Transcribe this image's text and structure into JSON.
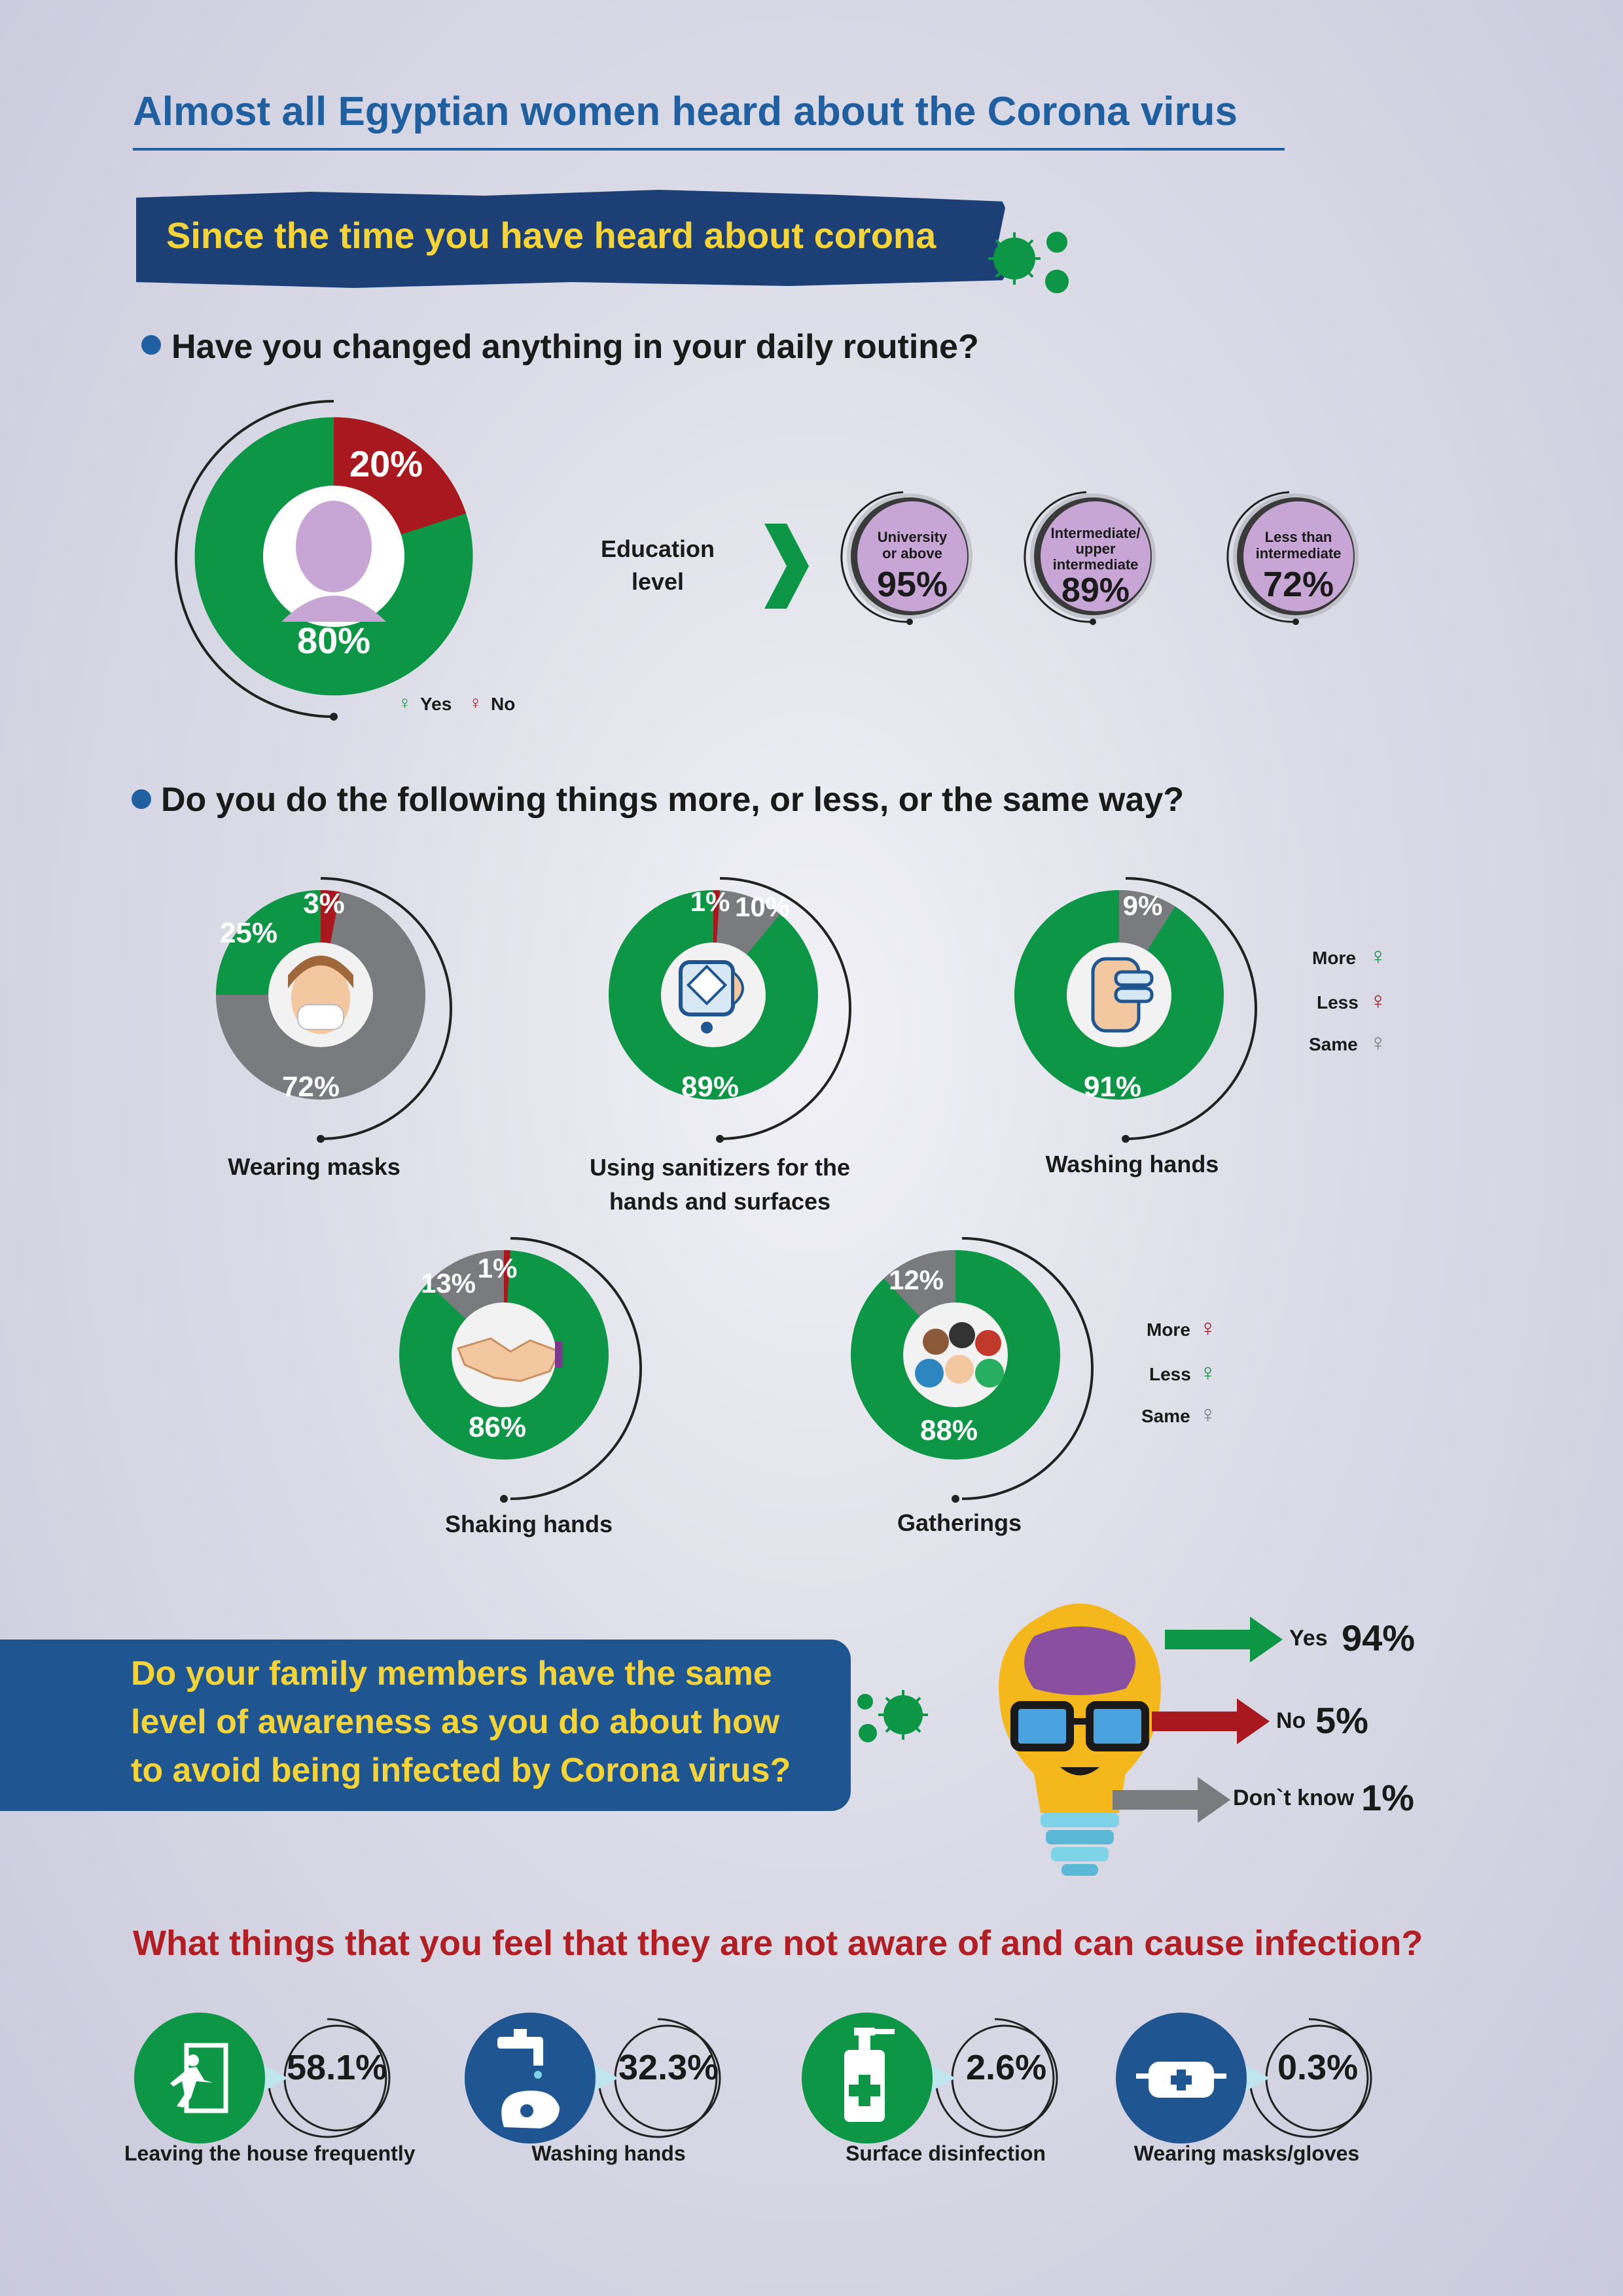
{
  "title": "Almost all Egyptian women heard about the Corona virus",
  "banner": "Since the time you have heard about corona",
  "colors": {
    "green": "#0c9645",
    "red": "#a8181e",
    "gray": "#7a7b7f",
    "blue": "#1f5591",
    "yellow": "#f5d43a",
    "lavender": "#c7a6d6"
  },
  "q1": {
    "question": "Have you changed anything in your daily routine?",
    "yes_pct": "80%",
    "no_pct": "20%",
    "legend_yes": "Yes",
    "legend_no": "No",
    "education_label_1": "Education",
    "education_label_2": "level",
    "education": [
      {
        "l1": "University",
        "l2": "or above",
        "l3": "",
        "pct": "95%"
      },
      {
        "l1": "Intermediate/",
        "l2": "upper",
        "l3": "intermediate",
        "pct": "89%"
      },
      {
        "l1": "Less than",
        "l2": "intermediate",
        "l3": "",
        "pct": "72%"
      }
    ]
  },
  "q2": {
    "question": "Do you do the following things more, or less, or the same way?",
    "legend1": {
      "more": "More",
      "less": "Less",
      "same": "Same"
    },
    "legend2": {
      "more": "More",
      "less": "Less",
      "same": "Same"
    },
    "items": [
      {
        "label": "Wearing masks",
        "label2": "",
        "icon": "mask-woman-icon",
        "pcts": [
          "25%",
          "3%",
          "72%"
        ]
      },
      {
        "label": "Using sanitizers for the",
        "label2": "hands and surfaces",
        "icon": "sanitizer-icon",
        "pcts": [
          "89%",
          "1%",
          "10%"
        ]
      },
      {
        "label": "Washing hands",
        "label2": "",
        "icon": "washing-hands-icon",
        "pcts": [
          "91%",
          "9%"
        ]
      },
      {
        "label": "Shaking hands",
        "label2": "",
        "icon": "handshake-icon",
        "pcts": [
          "13%",
          "1%",
          "86%"
        ]
      },
      {
        "label": "Gatherings",
        "label2": "",
        "icon": "crowd-icon",
        "pcts": [
          "12%",
          "88%"
        ]
      }
    ]
  },
  "q3": {
    "question_line1": "Do your family members have the same",
    "question_line2": "level of awareness as you do about how",
    "question_line3": "to avoid being infected by Corona virus?",
    "answers": [
      {
        "label": "Yes",
        "pct": "94%"
      },
      {
        "label": "No",
        "pct": "5%"
      },
      {
        "label": "Don`t know",
        "pct": "1%"
      }
    ]
  },
  "q4": {
    "question": "What things that you feel that they are not aware of and can cause infection?",
    "items": [
      {
        "label": "Leaving the house frequently",
        "pct": "58.1%",
        "icon": "exit-door-icon"
      },
      {
        "label": "Washing hands",
        "pct": "32.3%",
        "icon": "faucet-hand-icon"
      },
      {
        "label": "Surface disinfection",
        "pct": "2.6%",
        "icon": "disinfectant-bottle-icon"
      },
      {
        "label": "Wearing masks/gloves",
        "pct": "0.3%",
        "icon": "mask-icon"
      }
    ]
  },
  "chart_data": [
    {
      "type": "pie",
      "title": "Have you changed anything in your daily routine?",
      "categories": [
        "Yes",
        "No"
      ],
      "values": [
        80,
        20
      ]
    },
    {
      "type": "bar",
      "title": "Education level",
      "categories": [
        "University or above",
        "Intermediate/ upper intermediate",
        "Less than intermediate"
      ],
      "values": [
        95,
        89,
        72
      ]
    },
    {
      "type": "pie",
      "title": "Wearing masks",
      "categories": [
        "More",
        "Less",
        "Same"
      ],
      "values": [
        25,
        3,
        72
      ]
    },
    {
      "type": "pie",
      "title": "Using sanitizers for the hands and surfaces",
      "categories": [
        "More",
        "Less",
        "Same"
      ],
      "values": [
        89,
        1,
        10
      ]
    },
    {
      "type": "pie",
      "title": "Washing hands",
      "categories": [
        "More",
        "Same"
      ],
      "values": [
        91,
        9
      ]
    },
    {
      "type": "pie",
      "title": "Shaking hands",
      "categories": [
        "Same",
        "More",
        "Less"
      ],
      "values": [
        13,
        1,
        86
      ]
    },
    {
      "type": "pie",
      "title": "Gatherings",
      "categories": [
        "Same",
        "Less"
      ],
      "values": [
        12,
        88
      ]
    },
    {
      "type": "bar",
      "title": "Do your family members have the same level of awareness as you do about how to avoid being infected by Corona virus?",
      "categories": [
        "Yes",
        "No",
        "Don`t know"
      ],
      "values": [
        94,
        5,
        1
      ]
    },
    {
      "type": "bar",
      "title": "What things that you feel that they are not aware of and can cause infection?",
      "categories": [
        "Leaving the house frequently",
        "Washing hands",
        "Surface disinfection",
        "Wearing masks/gloves"
      ],
      "values": [
        58.1,
        32.3,
        2.6,
        0.3
      ]
    }
  ]
}
